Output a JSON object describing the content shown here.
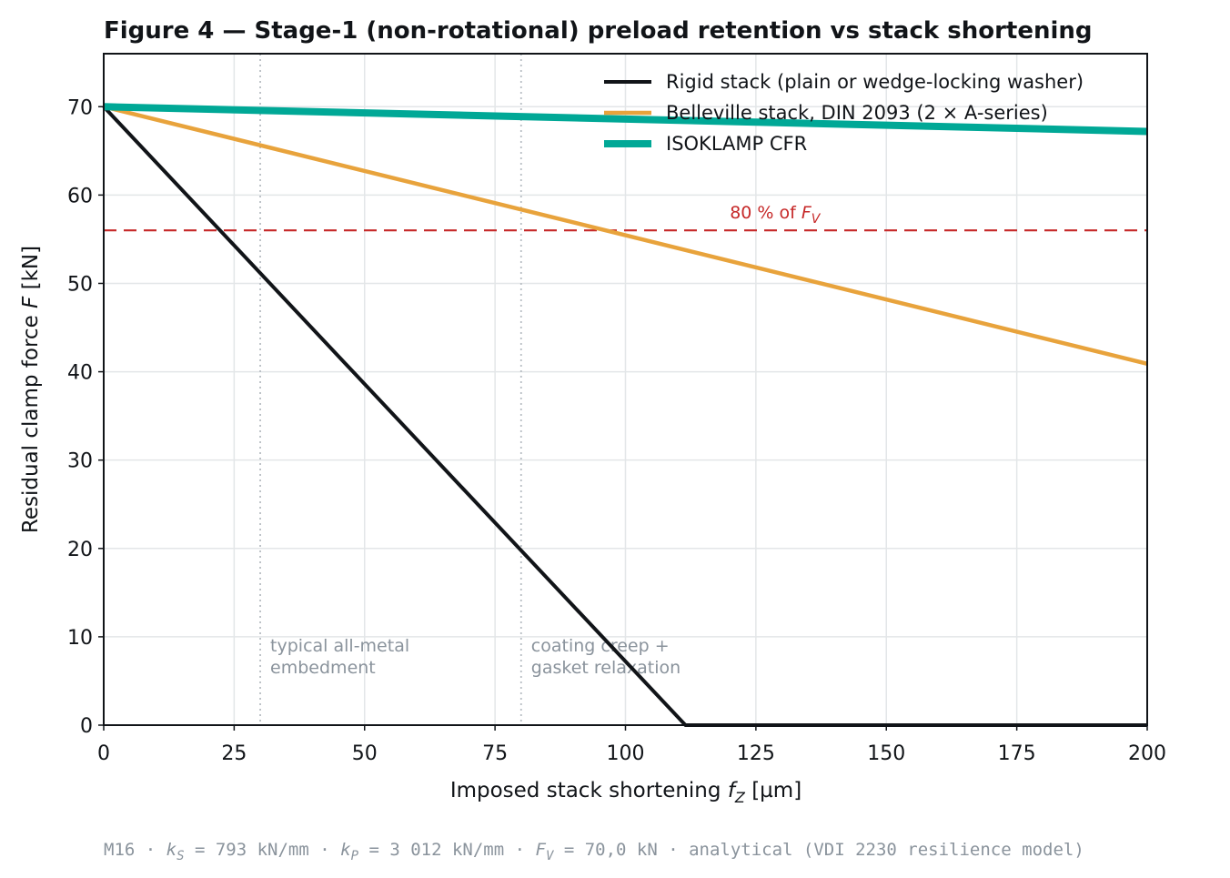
{
  "chart_data": {
    "type": "line",
    "title": "Figure 4 — Stage-1 (non-rotational) preload retention vs stack shortening",
    "xlabel": "Imposed stack shortening  f_Z  [µm]",
    "xlabel_parts": {
      "pre": "Imposed stack shortening  ",
      "var": "f",
      "sub": "Z",
      "post": "  [µm]"
    },
    "ylabel": "Residual clamp force  F  [kN]",
    "ylabel_parts": {
      "pre": "Residual clamp force  ",
      "var": "F",
      "post": "  [kN]"
    },
    "xlim": [
      0,
      200
    ],
    "ylim": [
      0,
      76
    ],
    "xticks": [
      0,
      25,
      50,
      75,
      100,
      125,
      150,
      175,
      200
    ],
    "yticks": [
      0,
      10,
      20,
      30,
      40,
      50,
      60,
      70
    ],
    "grid": true,
    "legend_position": "top-right",
    "series": [
      {
        "name": "Rigid stack (plain or wedge-locking washer)",
        "color": "#111418",
        "width": 4,
        "x": [
          0,
          111.5,
          200
        ],
        "y": [
          70,
          0,
          0
        ]
      },
      {
        "name": "Belleville stack, DIN 2093 (2 × A-series)",
        "color": "#e8a33c",
        "width": 4.5,
        "x": [
          0,
          200
        ],
        "y": [
          70,
          40.9
        ]
      },
      {
        "name": "ISOKLAMP CFR",
        "color": "#00a896",
        "width": 8,
        "x": [
          0,
          200
        ],
        "y": [
          70,
          67.2
        ]
      }
    ],
    "reference_line": {
      "y": 56,
      "color": "#c62828",
      "label_pre": "80 % of ",
      "label_var": "F",
      "label_sub": "V",
      "label_x": 120
    },
    "vlines": [
      {
        "x": 30,
        "annotation": [
          "typical all-metal",
          "embedment"
        ]
      },
      {
        "x": 80,
        "annotation": [
          "coating creep +",
          "gasket relaxation"
        ]
      }
    ],
    "footer": "M16 · k_S = 793 kN/mm · k_P = 3 012 kN/mm · F_V = 70,0 kN · analytical (VDI 2230 resilience model)",
    "footer_parts": {
      "p1": "M16 · ",
      "v1": "k",
      "s1": "S",
      "p2": " = 793 kN/mm · ",
      "v2": "k",
      "s2": "P",
      "p3": " = 3 012 kN/mm · ",
      "v3": "F",
      "s3": "V",
      "p4": " = 70,0 kN · analytical (VDI 2230 resilience model)"
    }
  }
}
